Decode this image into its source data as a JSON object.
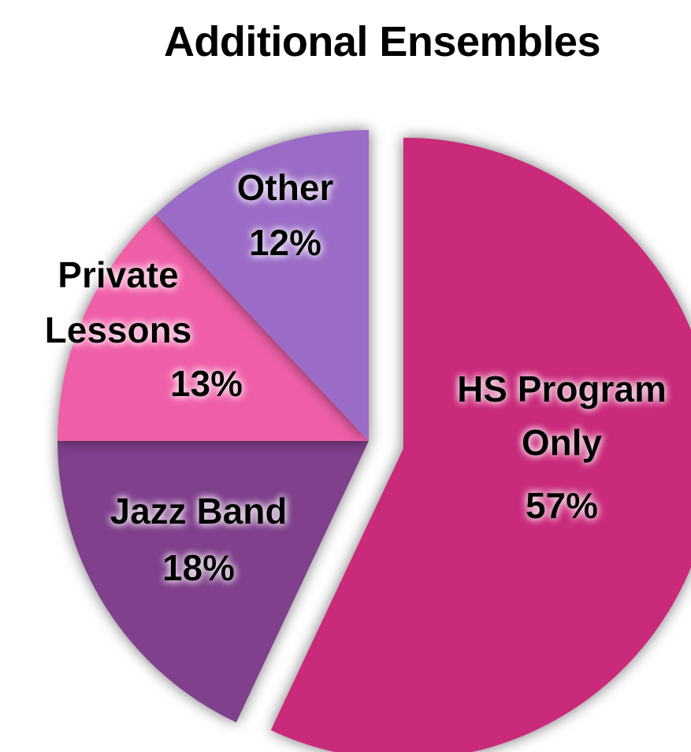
{
  "chart_data": {
    "type": "pie",
    "title": "Additional Ensembles",
    "slices": [
      {
        "label": "HS Program Only",
        "label_lines": [
          "HS Program",
          "Only"
        ],
        "value": 57,
        "value_label": "57%",
        "color": "#C92A7A",
        "exploded": true
      },
      {
        "label": "Jazz Band",
        "label_lines": [
          "Jazz Band"
        ],
        "value": 18,
        "value_label": "18%",
        "color": "#80418C",
        "exploded": false
      },
      {
        "label": "Private Lessons",
        "label_lines": [
          "Private",
          "Lessons"
        ],
        "value": 13,
        "value_label": "13%",
        "color": "#EF5EA8",
        "exploded": false
      },
      {
        "label": "Other",
        "label_lines": [
          "Other"
        ],
        "value": 12,
        "value_label": "12%",
        "color": "#9A6CC7",
        "exploded": false
      }
    ]
  }
}
